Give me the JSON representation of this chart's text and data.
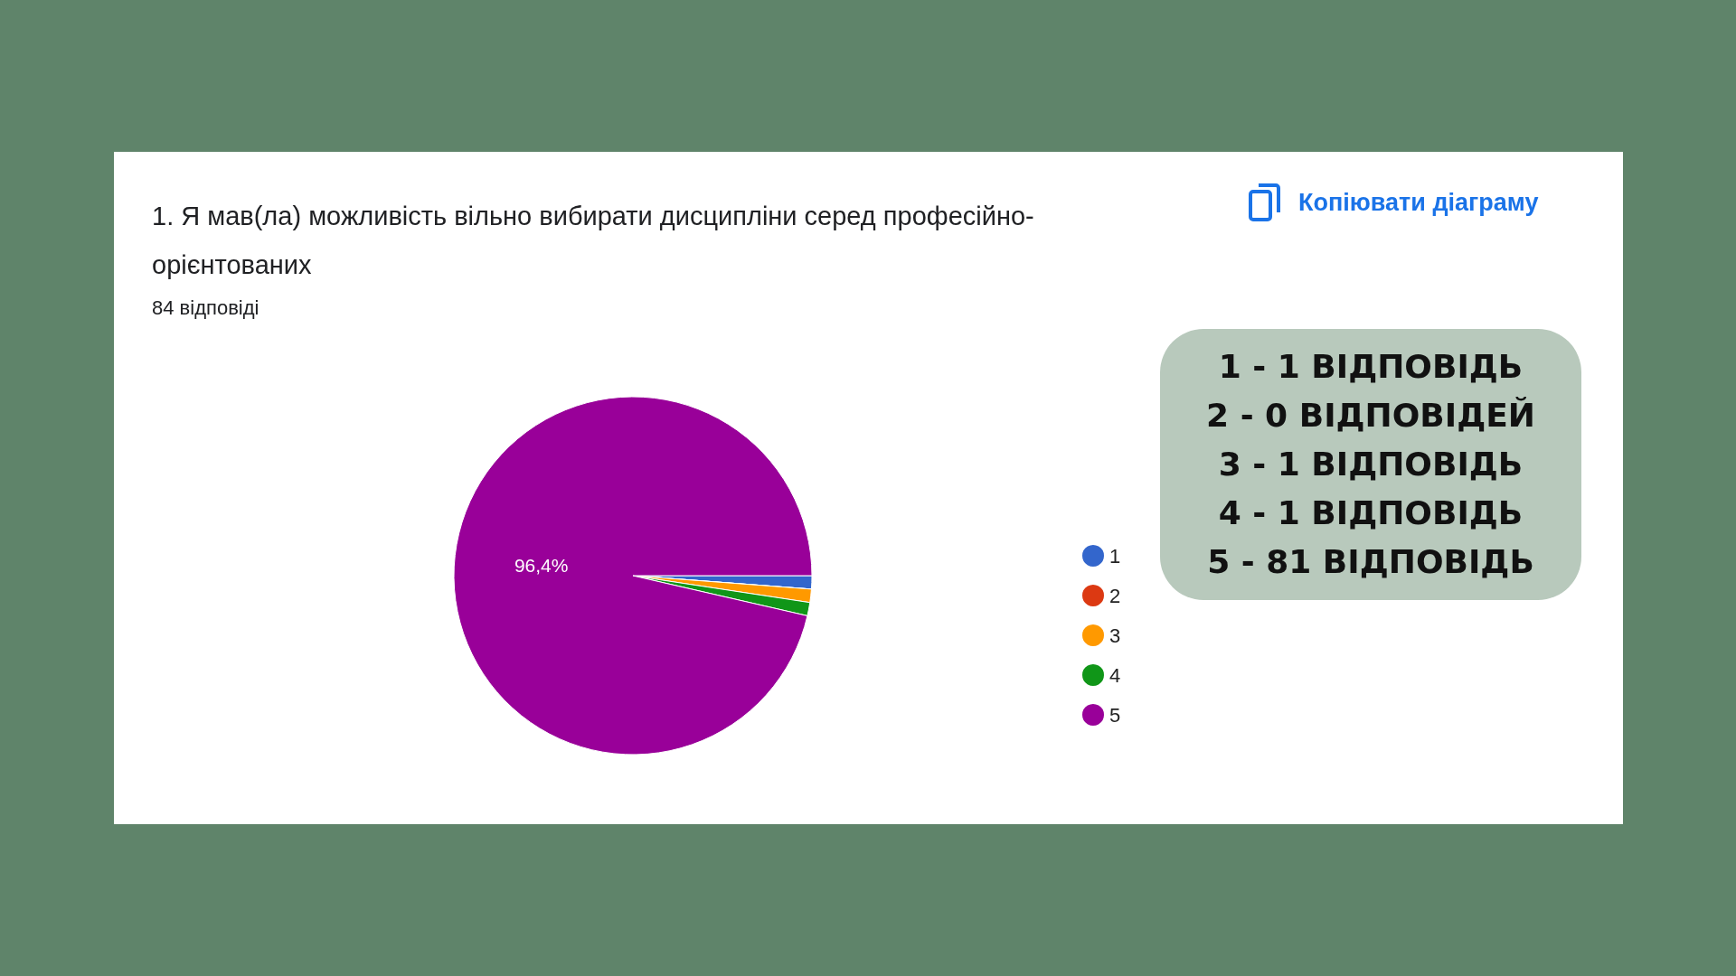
{
  "chart_data": {
    "type": "pie",
    "title": "1. Я мав(ла)  можливість вільно вибирати дисципліни серед професійно-орієнтованих",
    "subtitle": "84 відповіді",
    "categories": [
      "1",
      "2",
      "3",
      "4",
      "5"
    ],
    "values": [
      1.2,
      0,
      1.2,
      1.2,
      96.4
    ],
    "colors": [
      "#3366cc",
      "#dc3912",
      "#ff9900",
      "#109618",
      "#990099"
    ],
    "value_labels": [
      null,
      null,
      null,
      null,
      "96,4%"
    ],
    "legend": "right",
    "annotations": [
      "Копіювати діаграму",
      "1 - 1 ВІДПОВІДЬ",
      "2 - 0 ВІДПОВІДЕЙ",
      "3 - 1 ВІДПОВІДЬ",
      "4 - 1 ВІДПОВІДЬ",
      "5 - 81 ВІДПОВІДЬ"
    ]
  }
}
